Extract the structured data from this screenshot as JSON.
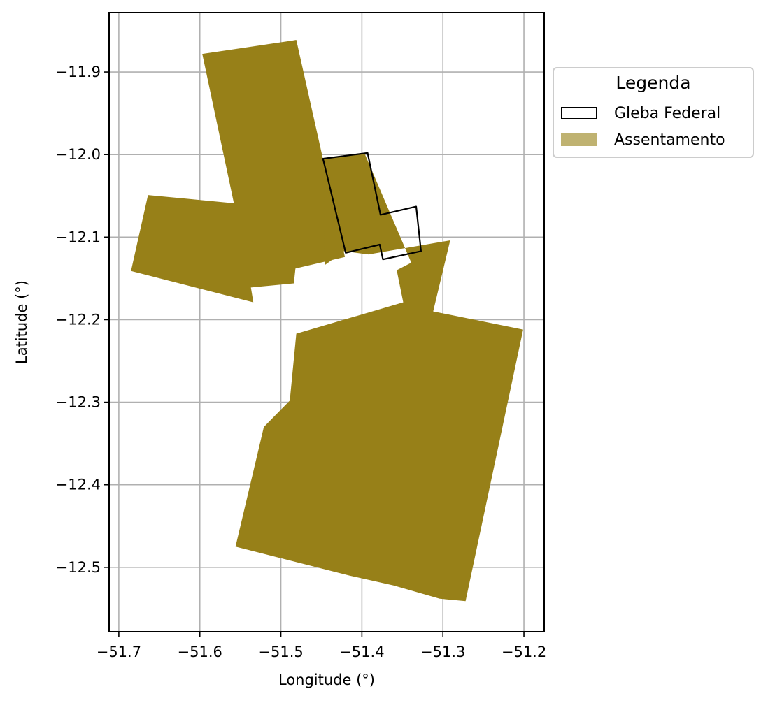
{
  "chart_data": {
    "type": "map",
    "xlabel": "Longitude (°)",
    "ylabel": "Latitude (°)",
    "xlim": [
      -51.712,
      -51.175
    ],
    "ylim": [
      -12.578,
      -11.828
    ],
    "x_ticks": [
      -51.7,
      -51.6,
      -51.5,
      -51.4,
      -51.3,
      -51.2
    ],
    "x_tick_labels": [
      "−51.7",
      "−51.6",
      "−51.5",
      "−51.4",
      "−51.3",
      "−51.2"
    ],
    "y_ticks": [
      -11.9,
      -12.0,
      -12.1,
      -12.2,
      -12.3,
      -12.4,
      -12.5
    ],
    "y_tick_labels": [
      "−11.9",
      "−12.0",
      "−12.1",
      "−12.2",
      "−12.3",
      "−12.4",
      "−12.5"
    ],
    "grid": true,
    "legend": {
      "title": "Legenda",
      "placement": "outside-right-top",
      "items": [
        {
          "label": "Gleba Federal",
          "style": "outline",
          "edge_color": "#000000",
          "fill": "#ffffff"
        },
        {
          "label": "Assentamento",
          "style": "fill",
          "fill": "#bfb271"
        }
      ]
    },
    "layers": [
      {
        "name": "Assentamento",
        "fill": "#978018",
        "polygons": [
          [
            [
              -51.597,
              -11.878
            ],
            [
              -51.487,
              -11.862
            ],
            [
              -51.481,
              -11.861
            ],
            [
              -51.421,
              -12.124
            ],
            [
              -51.482,
              -12.138
            ],
            [
              -51.484,
              -12.156
            ],
            [
              -51.537,
              -12.161
            ],
            [
              -51.534,
              -12.179
            ],
            [
              -51.685,
              -12.141
            ],
            [
              -51.664,
              -12.049
            ],
            [
              -51.558,
              -12.059
            ]
          ],
          [
            [
              -51.447,
              -12.004
            ],
            [
              -51.397,
              -11.998
            ],
            [
              -51.339,
              -12.131
            ],
            [
              -51.357,
              -12.14
            ],
            [
              -51.349,
              -12.179
            ],
            [
              -51.481,
              -12.217
            ],
            [
              -51.489,
              -12.298
            ],
            [
              -51.521,
              -12.33
            ],
            [
              -51.556,
              -12.475
            ],
            [
              -51.415,
              -12.51
            ],
            [
              -51.361,
              -12.522
            ],
            [
              -51.304,
              -12.538
            ],
            [
              -51.272,
              -12.541
            ],
            [
              -51.201,
              -12.212
            ],
            [
              -51.312,
              -12.19
            ],
            [
              -51.291,
              -12.104
            ],
            [
              -51.392,
              -12.121
            ],
            [
              -51.422,
              -12.117
            ],
            [
              -51.446,
              -12.134
            ]
          ]
        ]
      },
      {
        "name": "Gleba Federal",
        "polygons": [
          [
            [
              -51.448,
              -12.005
            ],
            [
              -51.393,
              -11.998
            ],
            [
              -51.377,
              -12.073
            ],
            [
              -51.333,
              -12.063
            ],
            [
              -51.327,
              -12.117
            ],
            [
              -51.374,
              -12.127
            ],
            [
              -51.378,
              -12.109
            ],
            [
              -51.42,
              -12.119
            ],
            [
              -51.448,
              -12.005
            ]
          ]
        ]
      }
    ]
  }
}
